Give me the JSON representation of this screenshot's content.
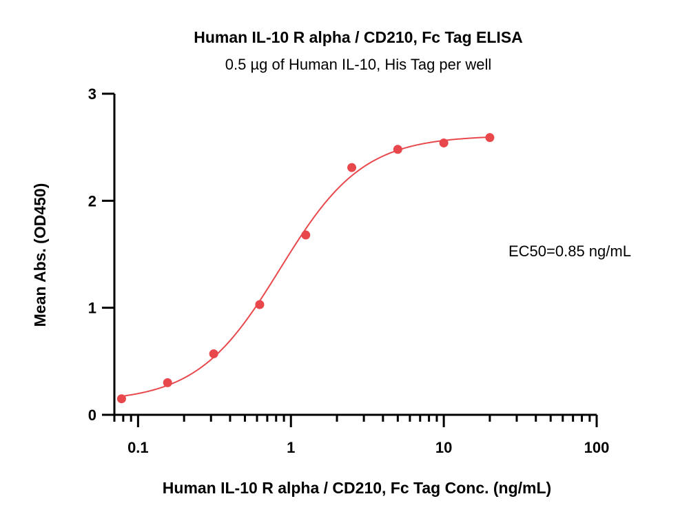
{
  "chart_data": {
    "type": "scatter",
    "title": "Human IL-10 R alpha / CD210, Fc Tag  ELISA",
    "subtitle": "0.5 µg of Human IL-10, His Tag per well",
    "xlabel": "Human IL-10 R alpha / CD210, Fc Tag  Conc. (ng/mL)",
    "ylabel": "Mean Abs. (OD450)",
    "xscale": "log",
    "xlim": [
      0.07,
      100
    ],
    "ylim": [
      0,
      3
    ],
    "x_ticks": [
      0.1,
      1,
      10,
      100
    ],
    "x_tick_labels": [
      "0.1",
      "1",
      "10",
      "100"
    ],
    "y_ticks": [
      0,
      1,
      2,
      3
    ],
    "y_tick_labels": [
      "0",
      "1",
      "2",
      "3"
    ],
    "grid": false,
    "legend": "none",
    "color": "#e8474c",
    "series": [
      {
        "x": [
          0.078,
          0.156,
          0.3125,
          0.625,
          1.25,
          2.5,
          5,
          10,
          20
        ],
        "y": [
          0.15,
          0.3,
          0.57,
          1.03,
          1.68,
          2.31,
          2.48,
          2.54,
          2.59
        ]
      }
    ],
    "fit": {
      "type": "4PL",
      "bottom": 0.12,
      "top": 2.61,
      "ec50": 0.85,
      "hill": 1.6,
      "x_range": [
        0.075,
        20
      ]
    },
    "annotations": [
      {
        "text": "EC50=0.85 ng/mL"
      }
    ]
  }
}
